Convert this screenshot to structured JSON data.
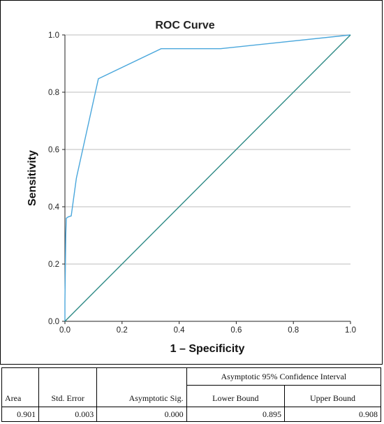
{
  "chart_data": {
    "type": "line",
    "title": "ROC Curve",
    "xlabel": "1 – Specificity",
    "ylabel": "Sensitivity",
    "xlim": [
      0,
      1
    ],
    "ylim": [
      0,
      1
    ],
    "xticks": [
      "0.0",
      "0.2",
      "0.4",
      "0.6",
      "0.8",
      "1.0"
    ],
    "yticks": [
      "0.0",
      "0.2",
      "0.4",
      "0.6",
      "0.8",
      "1.0"
    ],
    "grid": "horizontal",
    "series": [
      {
        "color": "#4aa7dc",
        "x": [
          0.0,
          0.0,
          0.003,
          0.005,
          0.012,
          0.022,
          0.04,
          0.117,
          0.337,
          0.545,
          1.0
        ],
        "y": [
          0.0,
          0.07,
          0.3,
          0.36,
          0.365,
          0.368,
          0.5,
          0.847,
          0.952,
          0.952,
          1.0
        ]
      },
      {
        "color": "#2e8a86",
        "x": [
          0.0,
          1.0
        ],
        "y": [
          0.0,
          1.0
        ]
      }
    ]
  },
  "table": {
    "ci_header": "Asymptotic 95% Confidence Interval",
    "headers": {
      "area": "Area",
      "std_error": "Std. Error",
      "asym_sig": "Asymptotic Sig.",
      "lower": "Lower Bound",
      "upper": "Upper Bound"
    },
    "row": {
      "area": "0.901",
      "std_error": "0.003",
      "asym_sig": "0.000",
      "lower": "0.895",
      "upper": "0.908"
    }
  }
}
